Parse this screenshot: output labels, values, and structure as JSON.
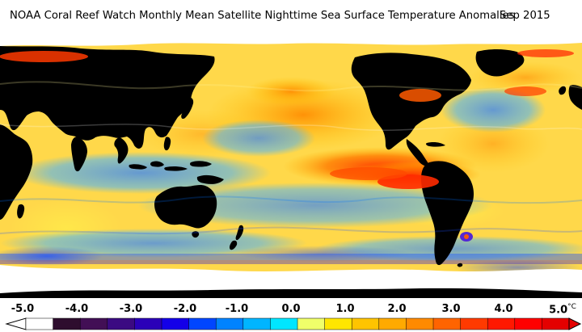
{
  "title": "NOAA Coral Reef Watch Monthly Mean Satellite Nighttime Sea Surface Temperature Anomalies",
  "date": "Sep 2015",
  "colorbar": {
    "unit": "°C",
    "min": -5.0,
    "max": 5.0,
    "tick_labels": [
      "-5.0",
      "-4.0",
      "-3.0",
      "-2.0",
      "-1.0",
      "0.0",
      "1.0",
      "2.0",
      "3.0",
      "4.0",
      "5.0"
    ],
    "segments": [
      "#ffffff",
      "#2e0d2e",
      "#420f55",
      "#3b0a82",
      "#2b00b8",
      "#1400e8",
      "#0046ff",
      "#0083ff",
      "#00b5ff",
      "#00e6ff",
      "#f0ff6a",
      "#ffe600",
      "#ffc400",
      "#ffaa00",
      "#ff8a00",
      "#ff6400",
      "#ff3a00",
      "#ff1800",
      "#ff0000",
      "#e40000"
    ]
  },
  "map_colors": {
    "land": "#000000",
    "ice": "#ffffff",
    "anomaly_neutral": "#ffd84a",
    "anomaly_warm": "#ff9a1a",
    "anomaly_hot": "#ff3a00",
    "anomaly_cool": "#56b8ff",
    "anomaly_cold": "#1f6dff"
  }
}
